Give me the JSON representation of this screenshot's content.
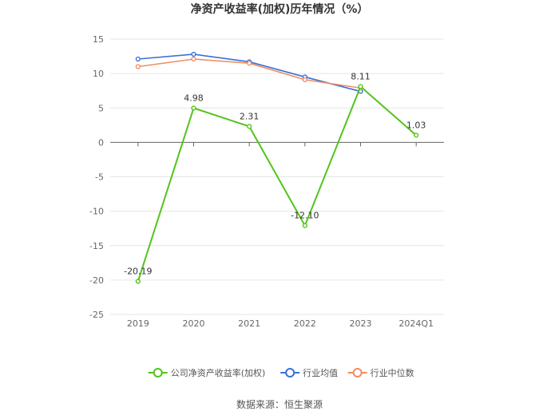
{
  "chart_data": {
    "type": "line",
    "title": "净资产收益率(加权)历年情况（%）",
    "categories": [
      "2019",
      "2020",
      "2021",
      "2022",
      "2023",
      "2024Q1"
    ],
    "ylim": [
      -25,
      15
    ],
    "yticks": [
      15,
      10,
      5,
      0,
      -5,
      -10,
      -15,
      -20,
      -25
    ],
    "grid": true,
    "legend_position": "bottom",
    "series": [
      {
        "name": "公司净资产收益率(加权)",
        "color": "#52c41a",
        "values": [
          -20.19,
          4.98,
          2.31,
          -12.1,
          8.11,
          1.03
        ],
        "labels": [
          "-20.19",
          "4.98",
          "2.31",
          "-12.10",
          "8.11",
          "1.03"
        ]
      },
      {
        "name": "行业均值",
        "color": "#3a6fd8",
        "values": [
          12.1,
          12.8,
          11.7,
          9.5,
          7.4,
          null
        ]
      },
      {
        "name": "行业中位数",
        "color": "#f08c62",
        "values": [
          11.0,
          12.1,
          11.5,
          9.1,
          7.9,
          null
        ]
      }
    ]
  },
  "source_text": "数据来源：恒生聚源"
}
